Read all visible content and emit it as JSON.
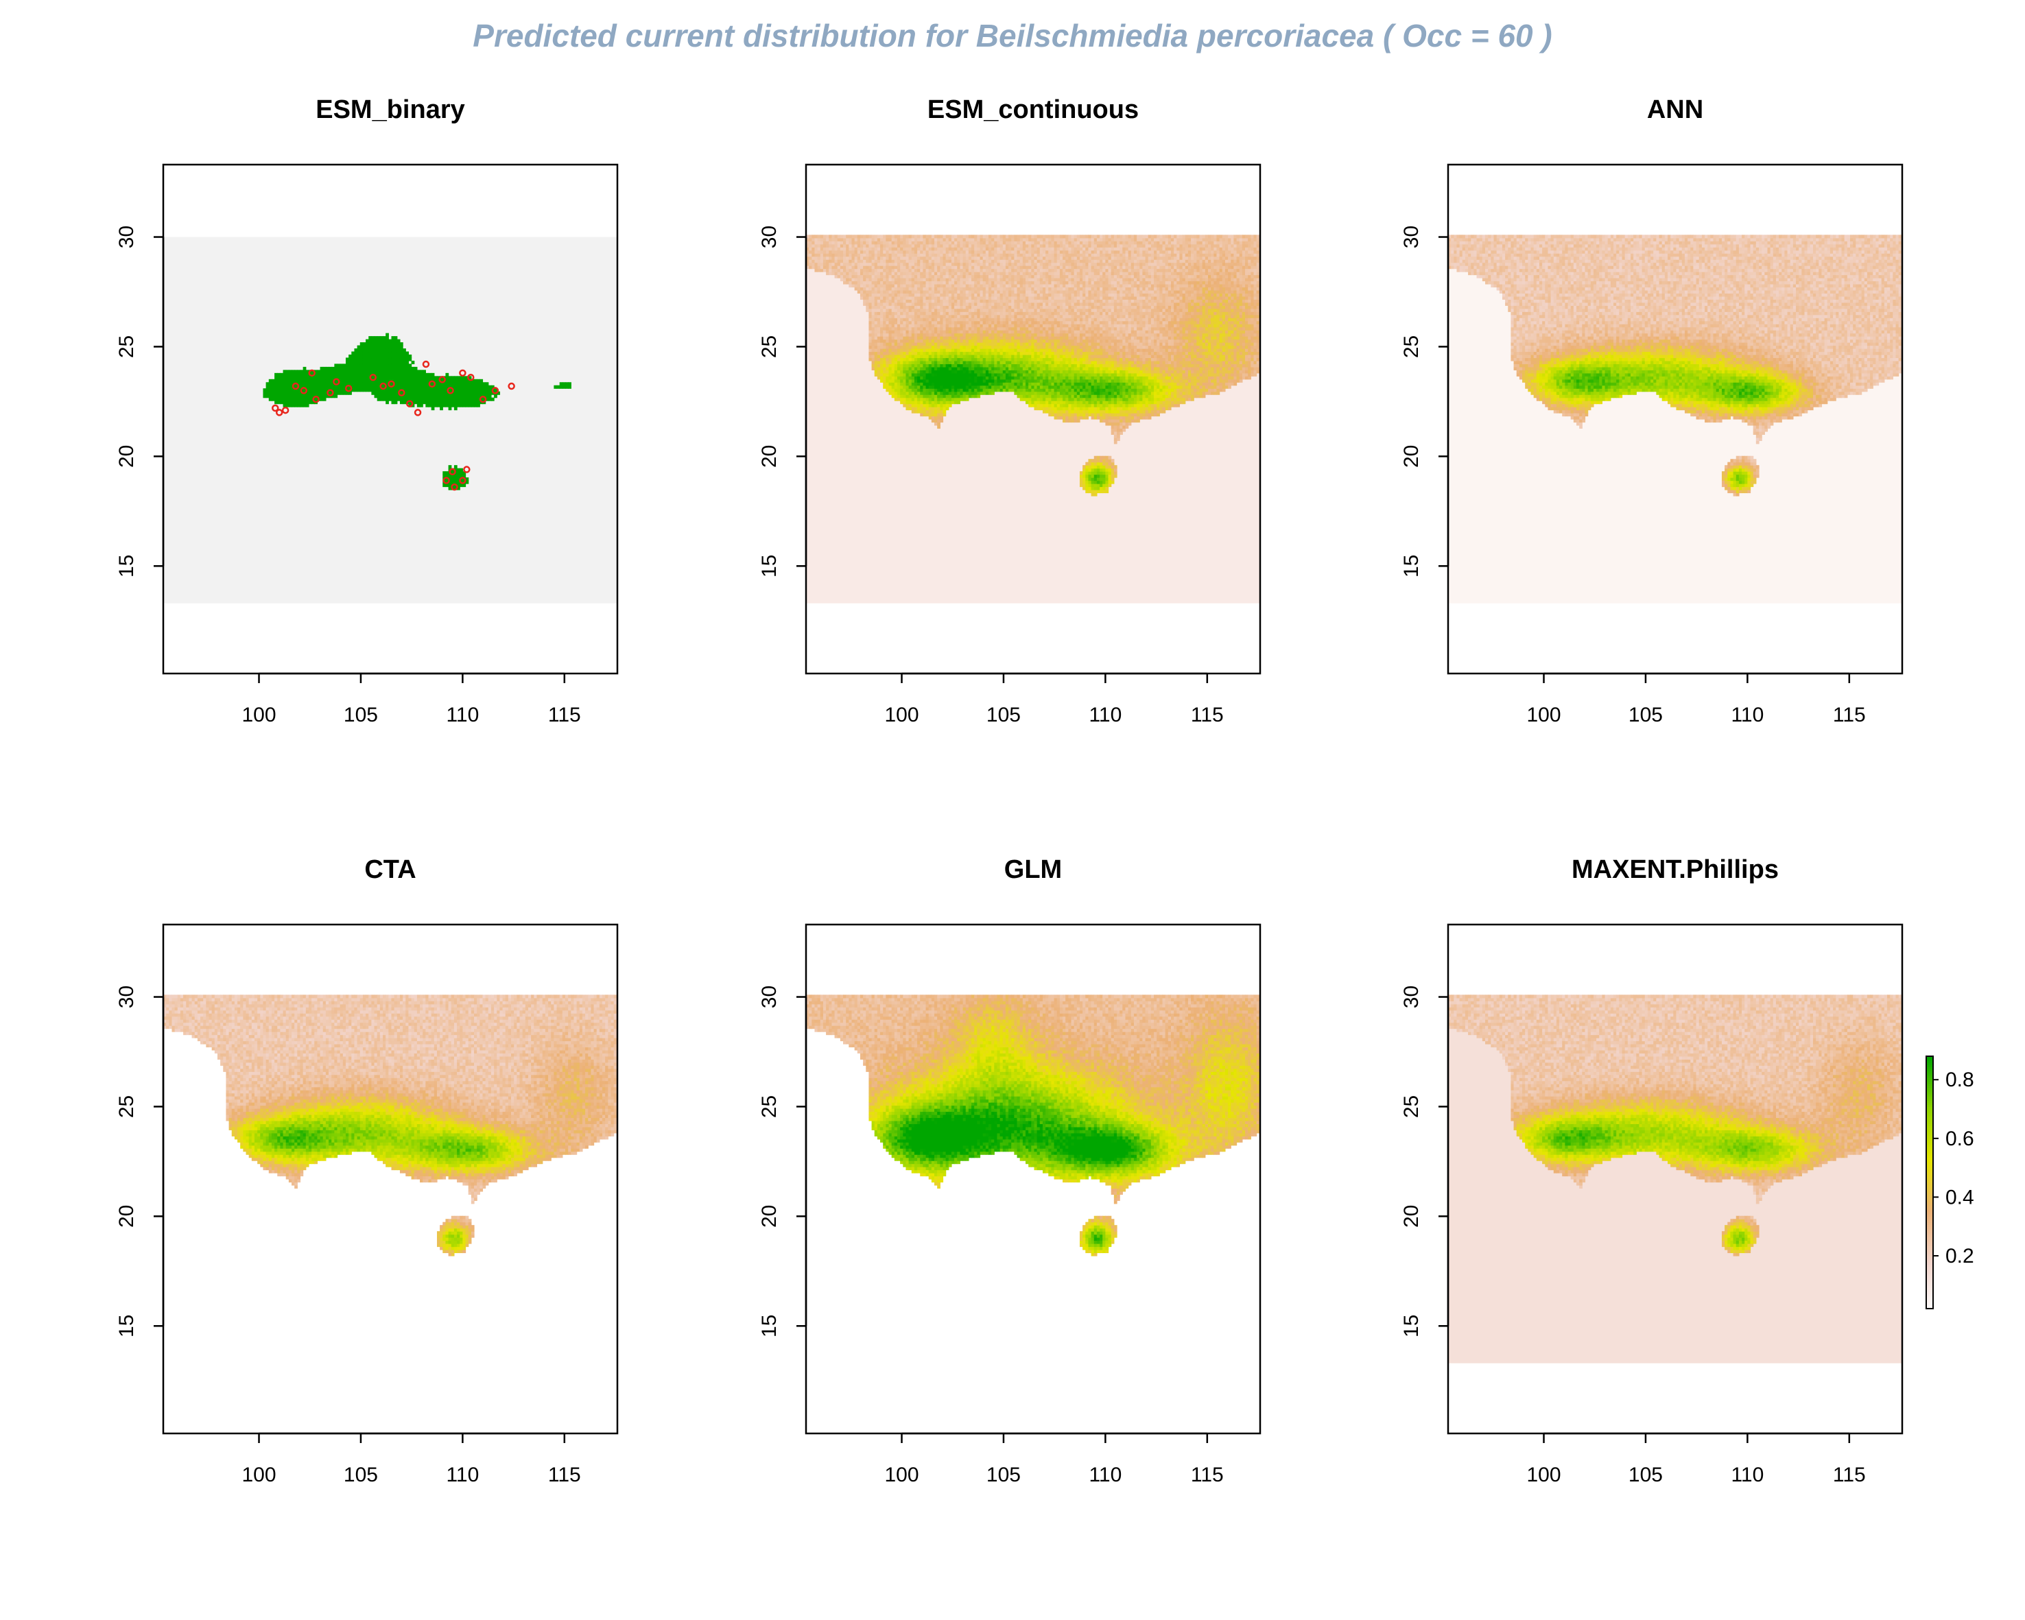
{
  "title": "Predicted current distribution for Beilschmiedia percoriacea  ( Occ =  60  )",
  "colors": {
    "title": "#8FA8C2",
    "background_extent": "#F2F2F2",
    "presence": "#00A600",
    "occurrence_point": "#E8261C",
    "frame": "#000000"
  },
  "legend": {
    "ticks": [
      "0.8",
      "0.6",
      "0.4",
      "0.2"
    ],
    "tick_values": [
      0.8,
      0.6,
      0.4,
      0.2
    ],
    "range": [
      0.02,
      0.88
    ],
    "palette": [
      "#FFFFFF",
      "#F2D5CC",
      "#ECB176",
      "#E6E600",
      "#8FD400",
      "#00A600"
    ]
  },
  "chart_data": [
    {
      "type": "heatmap",
      "title": "ESM_binary",
      "mode": "binary",
      "xlim": [
        95.3,
        117.6
      ],
      "ylim": [
        10.1,
        33.3
      ],
      "data_extent": {
        "x": [
          95.3,
          117.6
        ],
        "y": [
          13.3,
          30.0
        ]
      },
      "x_ticks": [
        100,
        105,
        110,
        115
      ],
      "y_ticks": [
        15,
        20,
        25,
        30
      ],
      "land_value": 0.0,
      "points": [
        [
          100.8,
          22.2
        ],
        [
          101.0,
          22.0
        ],
        [
          101.3,
          22.1
        ],
        [
          101.8,
          23.2
        ],
        [
          102.2,
          23.0
        ],
        [
          102.8,
          22.6
        ],
        [
          103.5,
          22.9
        ],
        [
          103.8,
          23.4
        ],
        [
          104.4,
          23.1
        ],
        [
          105.6,
          23.6
        ],
        [
          106.1,
          23.2
        ],
        [
          106.5,
          23.3
        ],
        [
          107.0,
          22.9
        ],
        [
          107.4,
          22.4
        ],
        [
          107.8,
          22.0
        ],
        [
          108.2,
          24.2
        ],
        [
          108.5,
          23.3
        ],
        [
          109.0,
          23.5
        ],
        [
          109.4,
          23.0
        ],
        [
          110.0,
          23.8
        ],
        [
          110.4,
          23.6
        ],
        [
          109.2,
          18.9
        ],
        [
          109.6,
          18.6
        ],
        [
          110.0,
          18.9
        ],
        [
          110.2,
          19.4
        ],
        [
          109.5,
          19.3
        ],
        [
          112.4,
          23.2
        ],
        [
          111.6,
          23.0
        ],
        [
          111.0,
          22.6
        ],
        [
          102.6,
          23.8
        ]
      ],
      "blobs": [
        {
          "x": 104.5,
          "y": 23.3,
          "sx": 3.2,
          "sy": 1.0,
          "w": 1.0
        },
        {
          "x": 106.0,
          "y": 24.6,
          "sx": 1.5,
          "sy": 1.2,
          "w": 1.0
        },
        {
          "x": 109.6,
          "y": 22.9,
          "sx": 2.6,
          "sy": 0.9,
          "w": 1.0
        },
        {
          "x": 101.6,
          "y": 23.0,
          "sx": 1.5,
          "sy": 0.8,
          "w": 0.9
        },
        {
          "x": 109.6,
          "y": 19.0,
          "sx": 0.8,
          "sy": 0.7,
          "w": 1.0
        },
        {
          "x": 115.0,
          "y": 23.2,
          "sx": 0.9,
          "sy": 0.3,
          "w": 0.7
        }
      ]
    },
    {
      "type": "heatmap",
      "title": "ESM_continuous",
      "mode": "continuous",
      "xlim": [
        95.3,
        117.6
      ],
      "ylim": [
        10.1,
        33.3
      ],
      "data_extent": {
        "x": [
          95.3,
          117.6
        ],
        "y": [
          13.3,
          30.0
        ]
      },
      "x_ticks": [
        100,
        105,
        110,
        115
      ],
      "y_ticks": [
        15,
        20,
        25,
        30
      ],
      "land_value": 0.3,
      "sea_value": 0.1,
      "blobs": [
        {
          "x": 105.0,
          "y": 23.6,
          "sx": 4.5,
          "sy": 1.6,
          "w": 0.55
        },
        {
          "x": 110.5,
          "y": 23.0,
          "sx": 3.0,
          "sy": 1.0,
          "w": 0.5
        },
        {
          "x": 101.5,
          "y": 23.5,
          "sx": 2.5,
          "sy": 1.2,
          "w": 0.45
        },
        {
          "x": 109.6,
          "y": 19.0,
          "sx": 0.8,
          "sy": 0.7,
          "w": 0.6
        },
        {
          "x": 115.5,
          "y": 25.5,
          "sx": 2.0,
          "sy": 2.5,
          "w": 0.2
        }
      ]
    },
    {
      "type": "heatmap",
      "title": "ANN",
      "mode": "continuous",
      "xlim": [
        95.3,
        117.6
      ],
      "ylim": [
        10.1,
        33.3
      ],
      "data_extent": {
        "x": [
          95.3,
          117.6
        ],
        "y": [
          13.3,
          30.0
        ]
      },
      "x_ticks": [
        100,
        105,
        110,
        115
      ],
      "y_ticks": [
        15,
        20,
        25,
        30
      ],
      "land_value": 0.27,
      "sea_value": 0.05,
      "blobs": [
        {
          "x": 105.5,
          "y": 23.6,
          "sx": 4.5,
          "sy": 1.4,
          "w": 0.5
        },
        {
          "x": 110.3,
          "y": 22.9,
          "sx": 2.5,
          "sy": 0.9,
          "w": 0.5
        },
        {
          "x": 101.5,
          "y": 23.4,
          "sx": 2.2,
          "sy": 1.0,
          "w": 0.4
        },
        {
          "x": 109.6,
          "y": 19.0,
          "sx": 0.7,
          "sy": 0.6,
          "w": 0.55
        }
      ]
    },
    {
      "type": "heatmap",
      "title": "CTA",
      "mode": "continuous",
      "xlim": [
        95.3,
        117.6
      ],
      "ylim": [
        10.1,
        33.3
      ],
      "data_extent": {
        "x": [
          95.3,
          117.6
        ],
        "y": [
          13.3,
          30.0
        ]
      },
      "x_ticks": [
        100,
        105,
        110,
        115
      ],
      "y_ticks": [
        15,
        20,
        25,
        30
      ],
      "land_value": 0.27,
      "sea_value": 0.0,
      "blobs": [
        {
          "x": 105.0,
          "y": 23.8,
          "sx": 4.5,
          "sy": 1.6,
          "w": 0.5
        },
        {
          "x": 110.5,
          "y": 23.0,
          "sx": 3.0,
          "sy": 1.0,
          "w": 0.5
        },
        {
          "x": 101.0,
          "y": 23.5,
          "sx": 2.5,
          "sy": 1.0,
          "w": 0.4
        },
        {
          "x": 109.6,
          "y": 19.0,
          "sx": 0.8,
          "sy": 0.7,
          "w": 0.5
        },
        {
          "x": 115.5,
          "y": 25.5,
          "sx": 2.0,
          "sy": 2.5,
          "w": 0.15
        }
      ]
    },
    {
      "type": "heatmap",
      "title": "GLM",
      "mode": "continuous",
      "xlim": [
        95.3,
        117.6
      ],
      "ylim": [
        10.1,
        33.3
      ],
      "data_extent": {
        "x": [
          95.3,
          117.6
        ],
        "y": [
          13.3,
          30.0
        ]
      },
      "x_ticks": [
        100,
        105,
        110,
        115
      ],
      "y_ticks": [
        15,
        20,
        25,
        30
      ],
      "land_value": 0.32,
      "sea_value": 0.0,
      "blobs": [
        {
          "x": 105.5,
          "y": 24.2,
          "sx": 5.5,
          "sy": 2.6,
          "w": 0.6
        },
        {
          "x": 110.5,
          "y": 23.0,
          "sx": 3.0,
          "sy": 1.2,
          "w": 0.55
        },
        {
          "x": 101.0,
          "y": 23.5,
          "sx": 3.0,
          "sy": 1.5,
          "w": 0.5
        },
        {
          "x": 109.6,
          "y": 19.0,
          "sx": 0.8,
          "sy": 0.7,
          "w": 0.6
        },
        {
          "x": 104.5,
          "y": 28.0,
          "sx": 2.0,
          "sy": 2.0,
          "w": 0.2
        },
        {
          "x": 116.0,
          "y": 26.0,
          "sx": 2.0,
          "sy": 3.0,
          "w": 0.25
        }
      ]
    },
    {
      "type": "heatmap",
      "title": "MAXENT.Phillips",
      "mode": "continuous",
      "xlim": [
        95.3,
        117.6
      ],
      "ylim": [
        10.1,
        33.3
      ],
      "data_extent": {
        "x": [
          95.3,
          117.6
        ],
        "y": [
          13.3,
          30.0
        ]
      },
      "x_ticks": [
        100,
        105,
        110,
        115
      ],
      "y_ticks": [
        15,
        20,
        25,
        30
      ],
      "land_value": 0.27,
      "sea_value": 0.15,
      "blobs": [
        {
          "x": 105.0,
          "y": 23.8,
          "sx": 5.0,
          "sy": 1.5,
          "w": 0.45
        },
        {
          "x": 110.5,
          "y": 23.0,
          "sx": 3.0,
          "sy": 1.0,
          "w": 0.45
        },
        {
          "x": 101.0,
          "y": 23.5,
          "sx": 2.5,
          "sy": 1.0,
          "w": 0.4
        },
        {
          "x": 109.6,
          "y": 19.0,
          "sx": 0.8,
          "sy": 0.7,
          "w": 0.55
        },
        {
          "x": 115.5,
          "y": 25.5,
          "sx": 2.0,
          "sy": 2.5,
          "w": 0.15
        }
      ]
    }
  ]
}
